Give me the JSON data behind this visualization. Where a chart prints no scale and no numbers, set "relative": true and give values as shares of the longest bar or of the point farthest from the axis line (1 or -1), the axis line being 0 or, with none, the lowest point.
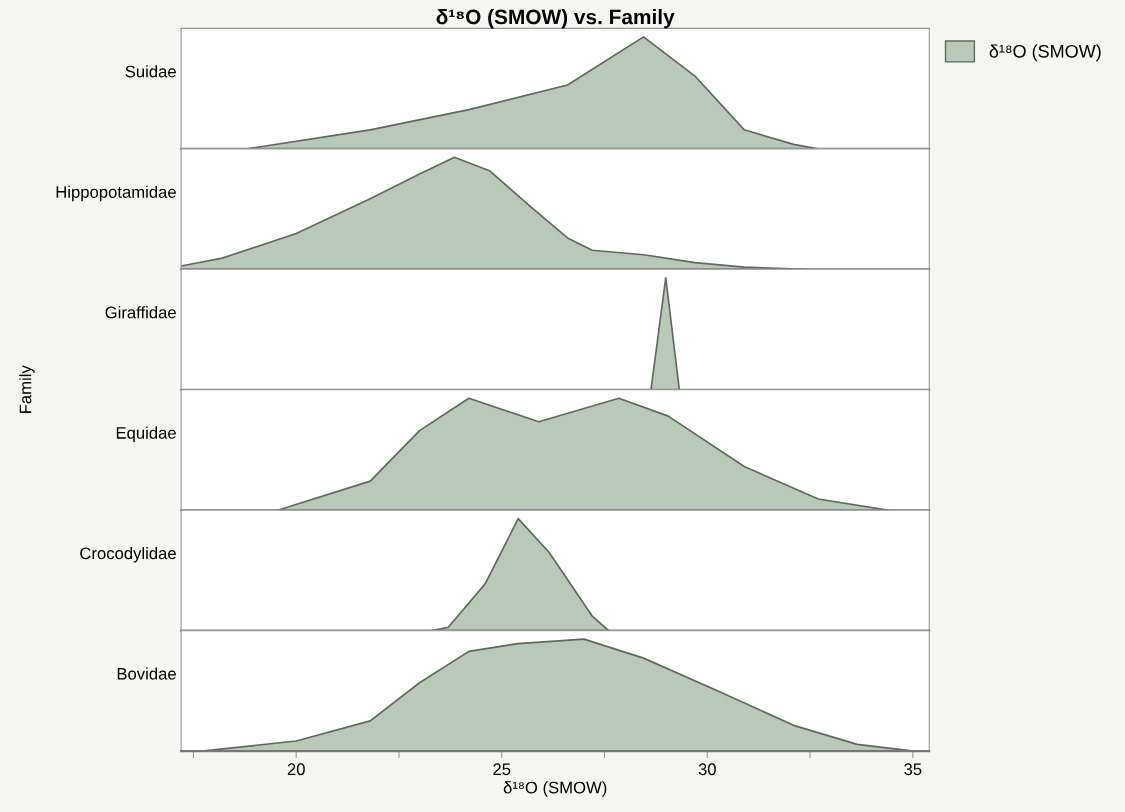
{
  "chart_data": [
    {
      "type": "area",
      "title": "δ¹⁸O (SMOW) vs. Family",
      "ylabel": "Suidae",
      "relative": true,
      "legend": "top right",
      "tick_labels": false,
      "annotations": [
        "Family"
      ],
      "xlim": [
        17.2,
        35.4
      ],
      "series": [
        {
          "name": "δ¹⁸O (SMOW)",
          "color": "#b8c9b8",
          "x": [
            18.8,
            21.8,
            24.2,
            26.6,
            28.45,
            29.7,
            30.9,
            32.1,
            32.7
          ],
          "values": [
            0,
            0.17,
            0.35,
            0.57,
            1,
            0.65,
            0.17,
            0.04,
            0
          ]
        }
      ]
    },
    {
      "type": "area",
      "ylabel": "Hippopotamidae",
      "relative": true,
      "tick_labels": false,
      "xlim": [
        17.2,
        35.4
      ],
      "series": [
        {
          "color": "#b8c9b8",
          "x": [
            17.2,
            18.2,
            20.0,
            21.8,
            23.0,
            23.85,
            24.7,
            25.7,
            26.6,
            27.2,
            28.45,
            29.7,
            30.9,
            32.4
          ],
          "values": [
            0.03,
            0.1,
            0.32,
            0.63,
            0.85,
            1,
            0.88,
            0.56,
            0.28,
            0.17,
            0.13,
            0.06,
            0.02,
            0
          ]
        }
      ]
    },
    {
      "type": "area",
      "ylabel": "Giraffidae",
      "relative": true,
      "tick_labels": false,
      "xlim": [
        17.2,
        35.4
      ],
      "series": [
        {
          "color": "#b8c9b8",
          "x": [
            28.63,
            28.99,
            29.32
          ],
          "values": [
            0,
            1,
            0
          ]
        }
      ]
    },
    {
      "type": "area",
      "ylabel": "Equidae",
      "relative": true,
      "tick_labels": false,
      "xlim": [
        17.2,
        35.4
      ],
      "series": [
        {
          "color": "#b8c9b8",
          "x": [
            19.55,
            21.8,
            23.0,
            24.2,
            25.9,
            27.85,
            29.05,
            30.9,
            32.7,
            34.4
          ],
          "values": [
            0,
            0.26,
            0.71,
            1,
            0.79,
            1,
            0.84,
            0.39,
            0.1,
            0
          ]
        }
      ]
    },
    {
      "type": "area",
      "ylabel": "Crocodylidae",
      "relative": true,
      "tick_labels": false,
      "xlim": [
        17.2,
        35.4
      ],
      "series": [
        {
          "color": "#b8c9b8",
          "x": [
            23.3,
            23.7,
            24.6,
            25.4,
            26.15,
            27.2,
            27.6
          ],
          "values": [
            0,
            0.03,
            0.42,
            1,
            0.7,
            0.13,
            0
          ]
        }
      ]
    },
    {
      "type": "area",
      "ylabel": "Bovidae",
      "xlabel": "δ¹⁸O (SMOW)",
      "relative": true,
      "tick_labels": "x",
      "xlim": [
        17.2,
        35.4
      ],
      "xticks": [
        {
          "value": 17.5,
          "label": null
        },
        20,
        {
          "value": 22.5,
          "label": null
        },
        25,
        {
          "value": 27.5,
          "label": null
        },
        30,
        {
          "value": 32.5,
          "label": null
        },
        35
      ],
      "series": [
        {
          "color": "#b8c9b8",
          "x": [
            17.7,
            20.0,
            21.8,
            23.0,
            24.2,
            25.4,
            27.0,
            28.45,
            30.3,
            32.1,
            33.65,
            35.0
          ],
          "values": [
            0,
            0.09,
            0.27,
            0.61,
            0.89,
            0.96,
            1,
            0.83,
            0.53,
            0.23,
            0.06,
            0
          ]
        }
      ]
    }
  ]
}
